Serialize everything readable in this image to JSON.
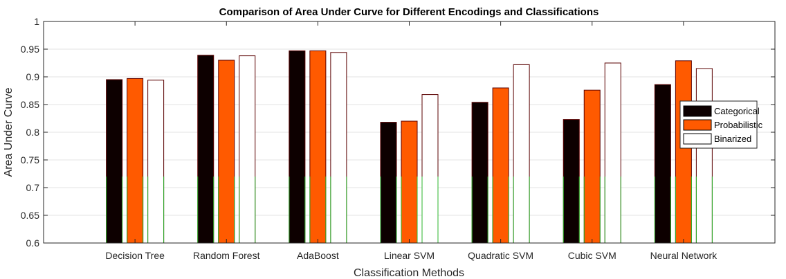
{
  "chart_data": {
    "type": "bar",
    "title": "Comparison of Area Under Curve for Different Encodings and Classifications",
    "xlabel": "Classification Methods",
    "ylabel": "Area Under Curve",
    "ylim": [
      0.6,
      1.0
    ],
    "yticks": [
      0.6,
      0.65,
      0.7,
      0.75,
      0.8,
      0.85,
      0.9,
      0.95,
      1.0
    ],
    "ytick_labels": [
      "0.6",
      "0.65",
      "0.7",
      "0.75",
      "0.8",
      "0.85",
      "0.9",
      "0.95",
      "1"
    ],
    "grid": "horizontal",
    "legend_position": "right",
    "categories": [
      "Decision Tree",
      "Random Forest",
      "AdaBoost",
      "Linear SVM",
      "Quadratic SVM",
      "Cubic SVM",
      "Neural Network"
    ],
    "series": [
      {
        "name": "Categorical",
        "color": "#0d0000",
        "values": [
          0.895,
          0.939,
          0.947,
          0.818,
          0.854,
          0.823,
          0.886
        ]
      },
      {
        "name": "Probabilistic",
        "color": "#ff5a00",
        "values": [
          0.897,
          0.93,
          0.947,
          0.82,
          0.88,
          0.876,
          0.929
        ]
      },
      {
        "name": "Binarized",
        "color": "#ffffff",
        "values": [
          0.894,
          0.938,
          0.944,
          0.868,
          0.922,
          0.925,
          0.915
        ]
      }
    ]
  }
}
